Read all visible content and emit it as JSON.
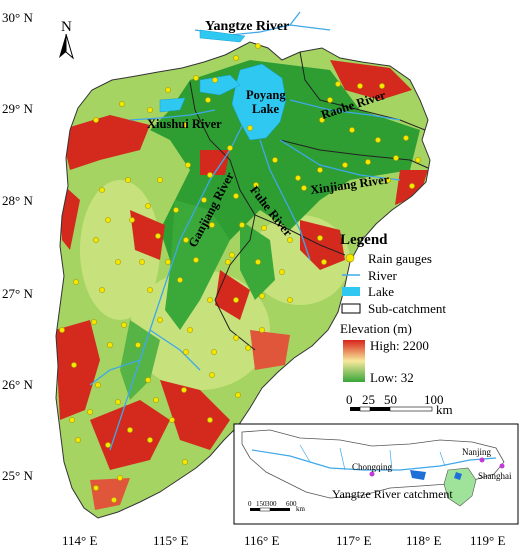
{
  "north_arrow": {
    "label": "N"
  },
  "axes": {
    "lat_ticks": [
      "30° N",
      "29° N",
      "28° N",
      "27° N",
      "26° N",
      "25° N"
    ],
    "lon_ticks": [
      "114° E",
      "115° E",
      "116° E",
      "117° E",
      "118° E",
      "119° E"
    ]
  },
  "labels": {
    "yangtze": "Yangtze River",
    "poyang": [
      "Poyang",
      "Lake"
    ],
    "xiushui": "Xiushui River",
    "raohe": "Raohe River",
    "xinjiang": "Xinjiang River",
    "ganjiang": "Ganjiang River",
    "fuhe": "Fuhe River"
  },
  "legend": {
    "title": "Legend",
    "items": [
      {
        "symbol": "circle",
        "label": "Rain gauges",
        "color": "#f5e800"
      },
      {
        "symbol": "line",
        "label": "River",
        "color": "#3fa8e8"
      },
      {
        "symbol": "fill",
        "label": "Lake",
        "color": "#2fc8f0"
      },
      {
        "symbol": "box",
        "label": "Sub-catchment",
        "color": "#000000"
      }
    ],
    "elevation": {
      "title": "Elevation (m)",
      "high": "High: 2200",
      "low": "Low: 32",
      "colors": [
        "#d8241b",
        "#f7e89a",
        "#37a63a"
      ]
    }
  },
  "scalebar": {
    "ticks": [
      "0",
      "25",
      "50",
      "100"
    ],
    "unit": "km"
  },
  "inset": {
    "cities": [
      "Chongqing",
      "Nanjing",
      "Shanghai"
    ],
    "caption": "Yangtze River catchment",
    "scale_ticks": [
      "0",
      "150",
      "300",
      "600"
    ],
    "scale_unit": "km"
  },
  "colors": {
    "lowland": "#2e9e33",
    "midland": "#a5d463",
    "upland": "#d6e98c",
    "mountain": "#d42a1e",
    "lake": "#2fc8f0",
    "river": "#3fa8e8",
    "gauge": "#f5e800"
  }
}
